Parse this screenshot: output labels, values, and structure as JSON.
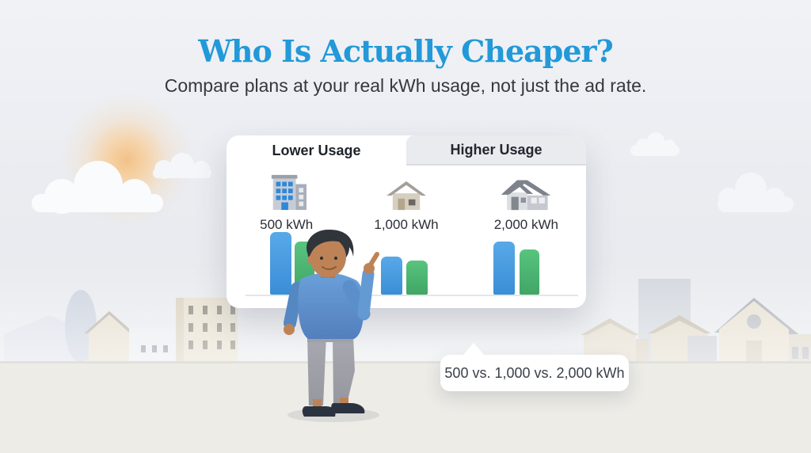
{
  "header": {
    "title": "Who Is Actually Cheaper?",
    "subtitle": "Compare plans at your real kWh usage, not just the ad rate."
  },
  "card": {
    "tabs": [
      {
        "label": "Lower Usage",
        "active": true
      },
      {
        "label": "Higher Usage",
        "active": false
      }
    ],
    "columns": [
      {
        "icon": "apartment-building-icon",
        "label": "500 kWh"
      },
      {
        "icon": "small-house-icon",
        "label": "1,000 kWh"
      },
      {
        "icon": "large-house-icon",
        "label": "2,000 kWh"
      }
    ]
  },
  "chart_data": {
    "type": "bar",
    "categories": [
      "500 kWh",
      "1,000 kWh",
      "2,000 kWh"
    ],
    "series": [
      {
        "name": "blue plan",
        "color": "#3a8ed6",
        "color_light": "#58a9e8",
        "values": [
          79,
          48,
          67
        ]
      },
      {
        "name": "green plan",
        "color": "#41a566",
        "color_light": "#58c47e",
        "values": [
          67,
          43,
          57
        ]
      }
    ],
    "title": "",
    "xlabel": "",
    "ylabel": "",
    "value_unit": "relative bar height in px (no numeric axis labels shown)",
    "grid": false,
    "baseline": true,
    "legend": "none"
  },
  "callout": {
    "text": "500 vs. 1,000 vs. 2,000 kWh"
  },
  "colors": {
    "title_blue": "#2299d8",
    "subtitle_gray": "#34383f",
    "card_bg": "#ffffff",
    "inactive_tab_bg": "#e9ebef"
  }
}
